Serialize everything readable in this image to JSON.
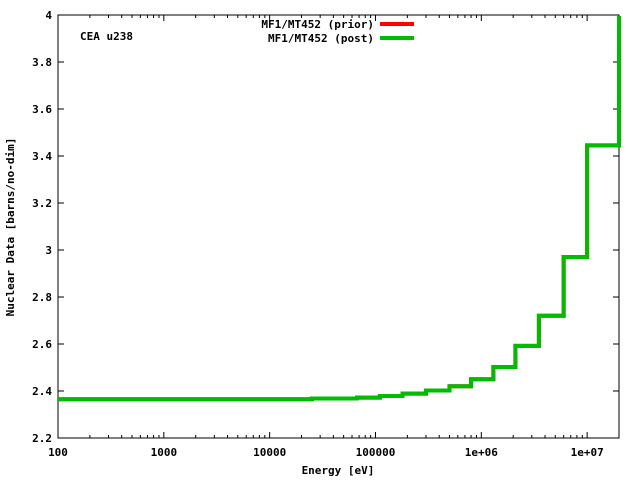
{
  "chart_data": {
    "type": "line",
    "title": "",
    "xlabel": "Energy [eV]",
    "ylabel": "Nuclear Data [barns/no-dim]",
    "annotation": "CEA u238",
    "xscale": "log",
    "xlim": [
      100,
      20000000
    ],
    "ylim": [
      2.2,
      4
    ],
    "x_ticks": [
      100,
      1000,
      10000,
      100000,
      1000000,
      10000000
    ],
    "x_tick_labels": [
      "100",
      "1000",
      "10000",
      "100000",
      "1e+06",
      "1e+07"
    ],
    "y_ticks": [
      2.2,
      2.4,
      2.6,
      2.8,
      3,
      3.2,
      3.4,
      3.6,
      3.8,
      4
    ],
    "y_tick_labels": [
      "2.2",
      "2.4",
      "2.6",
      "2.8",
      "3",
      "3.2",
      "3.4",
      "3.6",
      "3.8",
      "4"
    ],
    "grid": false,
    "legend_position": "top-center",
    "series": [
      {
        "name": "MF1/MT452 (prior)",
        "color": "#ff0000",
        "style": "step",
        "x": [
          100,
          25000,
          67000,
          110000,
          180000,
          300000,
          500000,
          800000,
          1300000,
          2100000,
          3500000,
          6000000,
          10000000,
          20000000
        ],
        "y": [
          2.365,
          2.368,
          2.372,
          2.379,
          2.389,
          2.402,
          2.42,
          2.45,
          2.502,
          2.592,
          2.72,
          2.97,
          3.445,
          3.995
        ]
      },
      {
        "name": "MF1/MT452 (post)",
        "color": "#00bb00",
        "style": "step",
        "x": [
          100,
          25000,
          67000,
          110000,
          180000,
          300000,
          500000,
          800000,
          1300000,
          2100000,
          3500000,
          6000000,
          10000000,
          20000000
        ],
        "y": [
          2.365,
          2.368,
          2.372,
          2.379,
          2.389,
          2.402,
          2.42,
          2.45,
          2.502,
          2.592,
          2.72,
          2.97,
          3.445,
          3.995
        ]
      }
    ]
  }
}
